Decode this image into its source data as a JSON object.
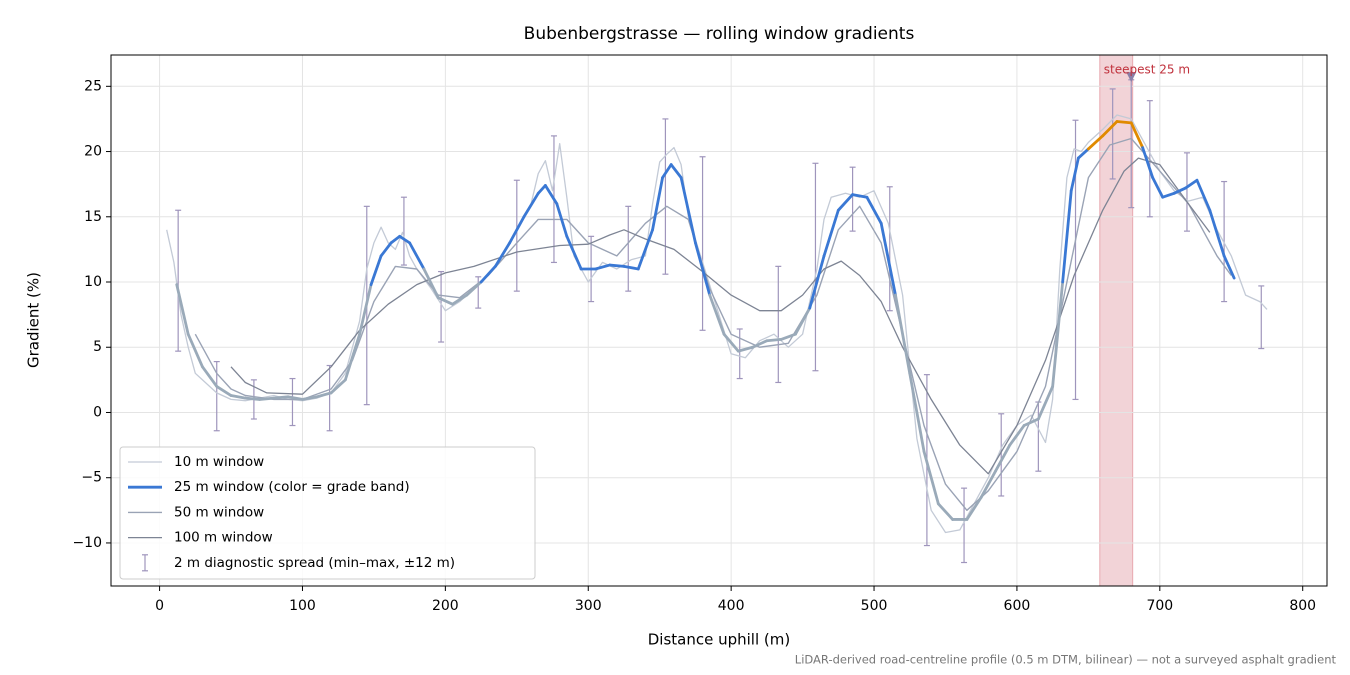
{
  "chart_data": {
    "type": "line",
    "title": "Bubenbergstrasse — rolling window gradients",
    "x_label": "Distance uphill (m)",
    "y_label": "Gradient (%)",
    "note": "LiDAR-derived road-centreline profile (0.5 m DTM, bilinear) — not a surveyed asphalt gradient",
    "xlim": [
      -34,
      817
    ],
    "ylim": [
      -13.3,
      27.4
    ],
    "xticks": [
      0,
      100,
      200,
      300,
      400,
      500,
      600,
      700,
      800
    ],
    "yticks": [
      {
        "value": -10,
        "label": "−10"
      },
      {
        "value": -5,
        "label": "−5"
      },
      0,
      5,
      10,
      15,
      20,
      25
    ],
    "grid": true,
    "legend": "lower left",
    "series": [
      {
        "name": "10 m window",
        "color": "#c3cad6",
        "width": 1.3,
        "x": [
          5,
          10,
          15,
          20,
          25,
          30,
          40,
          50,
          60,
          70,
          80,
          90,
          100,
          110,
          120,
          130,
          140,
          145,
          150,
          155,
          160,
          165,
          170,
          175,
          180,
          190,
          200,
          210,
          220,
          230,
          240,
          250,
          260,
          265,
          270,
          275,
          280,
          285,
          290,
          300,
          310,
          320,
          330,
          340,
          345,
          350,
          355,
          360,
          365,
          370,
          380,
          390,
          400,
          410,
          420,
          430,
          440,
          450,
          460,
          465,
          470,
          480,
          490,
          500,
          510,
          520,
          530,
          540,
          550,
          560,
          570,
          580,
          590,
          600,
          610,
          620,
          625,
          630,
          635,
          640,
          645,
          650,
          660,
          670,
          680,
          690,
          700,
          710,
          720,
          730,
          740,
          750,
          760,
          770,
          775
        ],
        "values": [
          14,
          11.5,
          7.5,
          5,
          3,
          2.5,
          1.5,
          1,
          0.9,
          1.1,
          1.3,
          1,
          0.9,
          1.1,
          1.5,
          3,
          7,
          11,
          13,
          14.2,
          13,
          12.5,
          13.8,
          12,
          11,
          9.5,
          7.8,
          8.5,
          9.5,
          10.5,
          12,
          14,
          16,
          18.3,
          19.3,
          17,
          20.6,
          16.5,
          12,
          10,
          11.5,
          11,
          11.7,
          12,
          16,
          19.2,
          19.8,
          20.3,
          19,
          15,
          11.5,
          8,
          4.5,
          4.2,
          5.5,
          6,
          5,
          6,
          11,
          14.8,
          16.5,
          16.8,
          16.5,
          17,
          14.5,
          9,
          -2,
          -7.5,
          -9.2,
          -9,
          -7,
          -5,
          -2.5,
          -1,
          -0.2,
          -2.3,
          1,
          11,
          18,
          20.2,
          20,
          20.7,
          21.7,
          22.8,
          22.5,
          20.5,
          18.5,
          17,
          16.2,
          16.5,
          14,
          12,
          9,
          8.5,
          7.9
        ]
      },
      {
        "name": "50 m window",
        "color": "#9aa3b5",
        "width": 1.4,
        "x": [
          25,
          40,
          50,
          60,
          80,
          100,
          120,
          135,
          150,
          165,
          180,
          195,
          210,
          230,
          250,
          265,
          285,
          300,
          320,
          340,
          355,
          370,
          385,
          400,
          420,
          440,
          460,
          475,
          490,
          505,
          520,
          535,
          550,
          565,
          580,
          600,
          620,
          635,
          650,
          665,
          680,
          700,
          720,
          740,
          750
        ],
        "values": [
          6,
          3,
          1.8,
          1.3,
          1.0,
          1.0,
          1.8,
          4,
          8.5,
          11.2,
          11,
          9,
          8.8,
          10.5,
          13,
          14.8,
          14.8,
          13,
          12,
          14.5,
          15.8,
          14.8,
          9.5,
          6,
          5,
          5.3,
          9,
          14,
          15.8,
          13,
          6,
          -1,
          -5.5,
          -7.5,
          -6,
          -3,
          2,
          10,
          18,
          20.5,
          21,
          18.5,
          16,
          12,
          10.5
        ]
      },
      {
        "name": "100 m window",
        "color": "#7d8494",
        "width": 1.3,
        "x": [
          50,
          60,
          75,
          100,
          120,
          140,
          160,
          180,
          200,
          220,
          250,
          280,
          300,
          315,
          325,
          340,
          360,
          380,
          400,
          420,
          435,
          450,
          465,
          477,
          490,
          505,
          520,
          540,
          560,
          580,
          600,
          620,
          640,
          660,
          675,
          685,
          700,
          720,
          735
        ],
        "values": [
          3.5,
          2.3,
          1.5,
          1.4,
          3.5,
          6.3,
          8.3,
          9.8,
          10.7,
          11.2,
          12.3,
          12.8,
          12.9,
          13.6,
          14,
          13.3,
          12.5,
          10.8,
          9,
          7.8,
          7.8,
          9,
          11,
          11.6,
          10.5,
          8.5,
          5,
          1,
          -2.5,
          -4.7,
          -1,
          4,
          10.5,
          15.5,
          18.5,
          19.5,
          19,
          16,
          13.8
        ]
      },
      {
        "name": "25 m window (color = grade band)",
        "color": "#3a78d4",
        "width": 2.8,
        "band_edges": [
          10,
          20
        ],
        "band_colors": [
          "#9aaab9",
          "#3a78d4",
          "#e08a00"
        ],
        "x": [
          12,
          20,
          30,
          40,
          50,
          60,
          70,
          80,
          90,
          100,
          110,
          120,
          130,
          140,
          148,
          155,
          162,
          168,
          175,
          185,
          195,
          205,
          215,
          225,
          235,
          245,
          255,
          265,
          270,
          278,
          285,
          295,
          305,
          315,
          325,
          335,
          345,
          352,
          358,
          365,
          375,
          385,
          395,
          405,
          415,
          425,
          435,
          445,
          455,
          465,
          475,
          485,
          495,
          505,
          515,
          525,
          535,
          545,
          555,
          565,
          575,
          585,
          595,
          605,
          615,
          625,
          632,
          638,
          643,
          650,
          660,
          670,
          680,
          688,
          695,
          702,
          710,
          718,
          726,
          735,
          745,
          752
        ],
        "values": [
          9.8,
          6,
          3.5,
          2,
          1.3,
          1.1,
          1.0,
          1.1,
          1.2,
          1.0,
          1.2,
          1.5,
          2.5,
          6,
          9.8,
          12,
          13,
          13.5,
          13,
          11,
          8.8,
          8.3,
          9,
          10,
          11.2,
          13,
          15,
          16.8,
          17.4,
          16,
          13.5,
          11,
          11,
          11.3,
          11.2,
          11,
          14,
          18,
          19,
          18,
          13,
          9,
          6,
          4.7,
          5,
          5.5,
          5.6,
          6,
          8,
          12,
          15.5,
          16.7,
          16.5,
          14.5,
          9,
          3,
          -3,
          -7,
          -8.2,
          -8.2,
          -6.5,
          -4.5,
          -2.5,
          -1,
          -0.5,
          2,
          10,
          17,
          19.5,
          20.2,
          21.2,
          22.3,
          22.2,
          20.3,
          18,
          16.5,
          16.8,
          17.2,
          17.8,
          15.5,
          12,
          10.3
        ]
      }
    ],
    "errorbars": {
      "name": "2 m diagnostic spread (min–max, ±12 m)",
      "color": "#9f95bc",
      "x": [
        13,
        40,
        66,
        93,
        119,
        145,
        171,
        197,
        223,
        250,
        276,
        302,
        328,
        354,
        380,
        406,
        433,
        459,
        485,
        511,
        537,
        563,
        589,
        615,
        641,
        667,
        680,
        693,
        719,
        745,
        771
      ],
      "low": [
        4.7,
        -1.4,
        -0.5,
        -1.0,
        -1.4,
        0.6,
        11.3,
        5.4,
        8.0,
        9.3,
        11.5,
        8.5,
        9.3,
        10.6,
        6.3,
        2.6,
        2.3,
        3.2,
        13.9,
        7.8,
        -10.2,
        -11.5,
        -6.4,
        -4.5,
        1.0,
        17.9,
        15.7,
        15.0,
        13.9,
        8.5,
        4.9
      ],
      "high": [
        15.5,
        3.9,
        2.5,
        2.6,
        3.6,
        15.8,
        16.5,
        10.8,
        10.4,
        17.8,
        21.2,
        13.5,
        15.8,
        22.5,
        19.6,
        6.4,
        11.2,
        19.1,
        18.8,
        17.3,
        2.9,
        -5.8,
        -0.1,
        0.8,
        22.4,
        24.8,
        25.5,
        23.9,
        19.9,
        17.7,
        9.7
      ]
    },
    "highlight": {
      "x": [
        658,
        681
      ],
      "color": "#f2d3d7"
    },
    "annotation": {
      "text": "steepest 25 m",
      "x": 680,
      "y": 25.7,
      "color": "#c0313c"
    }
  }
}
